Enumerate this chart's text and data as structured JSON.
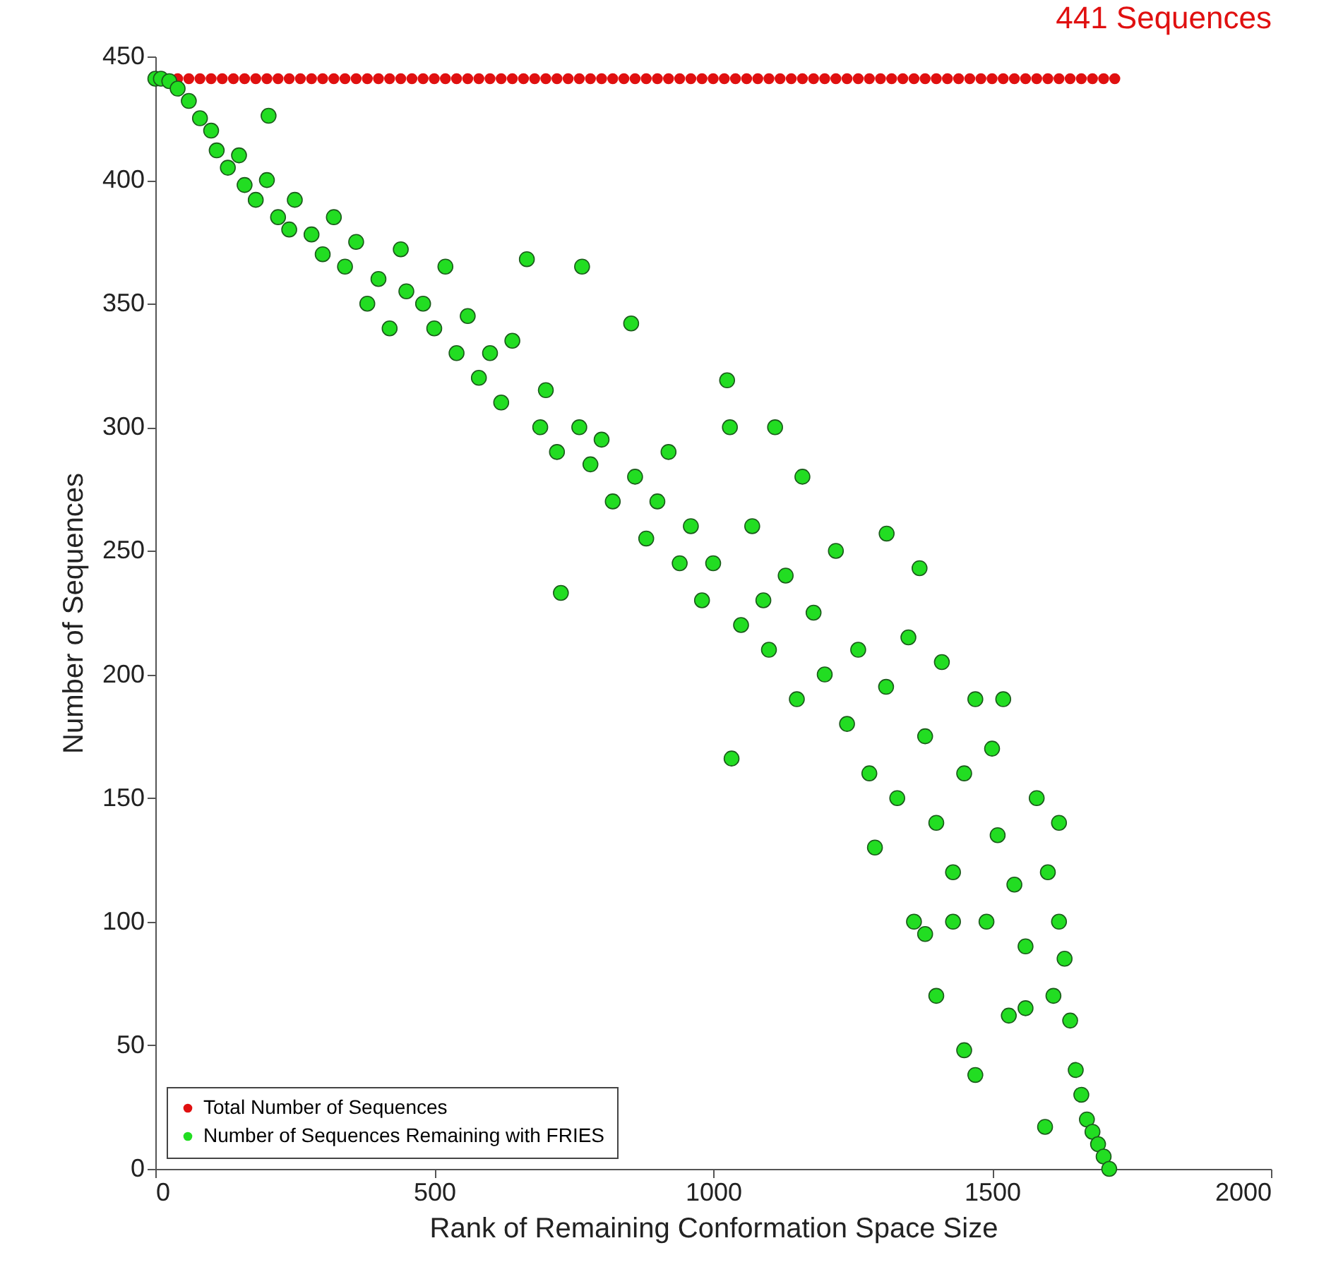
{
  "chart_data": {
    "type": "scatter",
    "xlabel": "Rank of Remaining Conformation Space Size",
    "ylabel": "Number of Sequences",
    "annotations": [
      "441 Sequences"
    ],
    "xlim": [
      0,
      2000
    ],
    "xticks": [
      0,
      500,
      1000,
      1500,
      2000
    ],
    "ylim": [
      0,
      450
    ],
    "yticks": [
      0,
      50,
      100,
      150,
      200,
      250,
      300,
      350,
      400,
      450
    ],
    "grid": false,
    "legend": "bottom left",
    "marker": "circle",
    "series": [
      {
        "name": "Total Number of Sequences",
        "color": "#e01010",
        "x": [
          40,
          60,
          80,
          100,
          120,
          140,
          160,
          180,
          200,
          220,
          240,
          260,
          280,
          300,
          320,
          340,
          360,
          380,
          400,
          420,
          440,
          460,
          480,
          500,
          520,
          540,
          560,
          580,
          600,
          620,
          640,
          660,
          680,
          700,
          720,
          740,
          760,
          780,
          800,
          820,
          840,
          860,
          880,
          900,
          920,
          940,
          960,
          980,
          1000,
          1020,
          1040,
          1060,
          1080,
          1100,
          1120,
          1140,
          1160,
          1180,
          1200,
          1220,
          1240,
          1260,
          1280,
          1300,
          1320,
          1340,
          1360,
          1380,
          1400,
          1420,
          1440,
          1460,
          1480,
          1500,
          1520,
          1540,
          1560,
          1580,
          1600,
          1620,
          1640,
          1660,
          1680,
          1700,
          1720
        ],
        "values": [
          441,
          441,
          441,
          441,
          441,
          441,
          441,
          441,
          441,
          441,
          441,
          441,
          441,
          441,
          441,
          441,
          441,
          441,
          441,
          441,
          441,
          441,
          441,
          441,
          441,
          441,
          441,
          441,
          441,
          441,
          441,
          441,
          441,
          441,
          441,
          441,
          441,
          441,
          441,
          441,
          441,
          441,
          441,
          441,
          441,
          441,
          441,
          441,
          441,
          441,
          441,
          441,
          441,
          441,
          441,
          441,
          441,
          441,
          441,
          441,
          441,
          441,
          441,
          441,
          441,
          441,
          441,
          441,
          441,
          441,
          441,
          441,
          441,
          441,
          441,
          441,
          441,
          441,
          441,
          441,
          441,
          441,
          441,
          441,
          441
        ]
      },
      {
        "name": "Number of Sequences Remaining with FRIES",
        "color": "#22dd22",
        "x": [
          0,
          10,
          25,
          40,
          60,
          80,
          100,
          110,
          130,
          150,
          160,
          180,
          200,
          203,
          220,
          240,
          250,
          280,
          300,
          320,
          340,
          360,
          380,
          400,
          420,
          440,
          450,
          480,
          500,
          520,
          540,
          560,
          580,
          600,
          620,
          640,
          666,
          690,
          700,
          720,
          727,
          765,
          760,
          780,
          800,
          820,
          853,
          860,
          880,
          900,
          920,
          940,
          960,
          980,
          1000,
          1025,
          1030,
          1033,
          1050,
          1070,
          1090,
          1100,
          1111,
          1130,
          1150,
          1160,
          1180,
          1200,
          1220,
          1240,
          1260,
          1280,
          1290,
          1311,
          1310,
          1330,
          1350,
          1360,
          1370,
          1380,
          1380,
          1400,
          1400,
          1410,
          1430,
          1430,
          1450,
          1450,
          1470,
          1470,
          1490,
          1500,
          1510,
          1520,
          1530,
          1540,
          1560,
          1560,
          1580,
          1595,
          1600,
          1610,
          1620,
          1620,
          1630,
          1640,
          1650,
          1660,
          1670,
          1680,
          1690,
          1700,
          1710
        ],
        "values": [
          441,
          441,
          440,
          437,
          432,
          425,
          420,
          412,
          405,
          410,
          398,
          392,
          400,
          426,
          385,
          380,
          392,
          378,
          370,
          385,
          365,
          375,
          350,
          360,
          340,
          372,
          355,
          350,
          340,
          365,
          330,
          345,
          320,
          330,
          310,
          335,
          368,
          300,
          315,
          290,
          233,
          365,
          300,
          285,
          295,
          270,
          342,
          280,
          255,
          270,
          290,
          245,
          260,
          230,
          245,
          319,
          300,
          166,
          220,
          260,
          230,
          210,
          300,
          240,
          190,
          280,
          225,
          200,
          250,
          180,
          210,
          160,
          130,
          257,
          195,
          150,
          215,
          100,
          243,
          175,
          95,
          140,
          70,
          205,
          120,
          100,
          160,
          48,
          190,
          38,
          100,
          170,
          135,
          190,
          62,
          115,
          90,
          65,
          150,
          17,
          120,
          70,
          100,
          140,
          85,
          60,
          40,
          30,
          20,
          15,
          10,
          5,
          0
        ]
      }
    ]
  }
}
